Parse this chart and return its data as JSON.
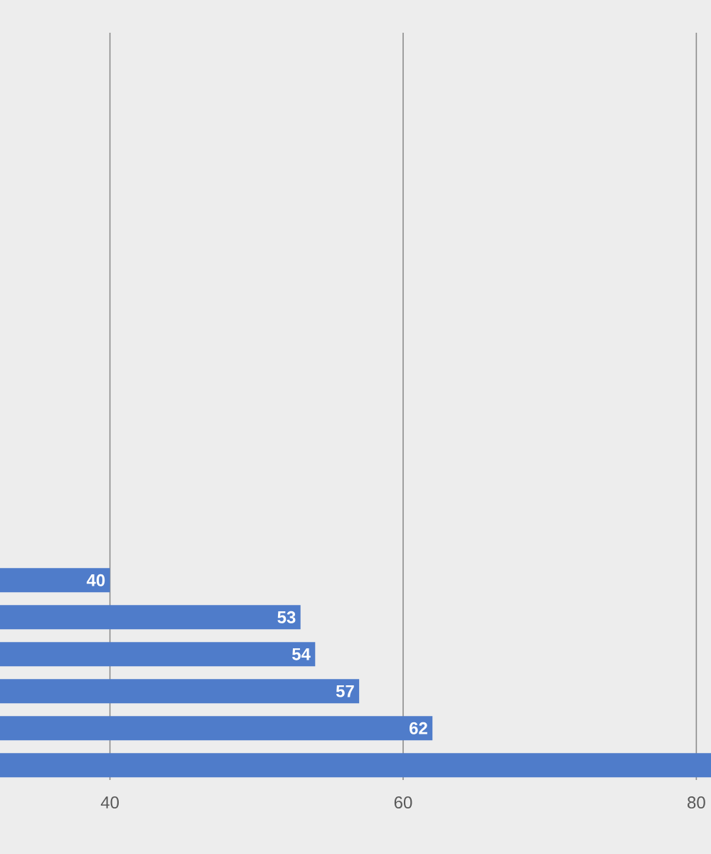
{
  "chart_data": {
    "type": "bar",
    "orientation": "horizontal",
    "categories": [
      null,
      null,
      null,
      null,
      null,
      null
    ],
    "values": [
      40,
      53,
      54,
      57,
      62,
      81
    ],
    "value_labels": [
      "40",
      "53",
      "54",
      "57",
      "62",
      null
    ],
    "color": "#4f7cca",
    "xlim": [
      32.5,
      81
    ],
    "xticks": [
      40,
      60,
      80
    ],
    "grid": "x"
  }
}
